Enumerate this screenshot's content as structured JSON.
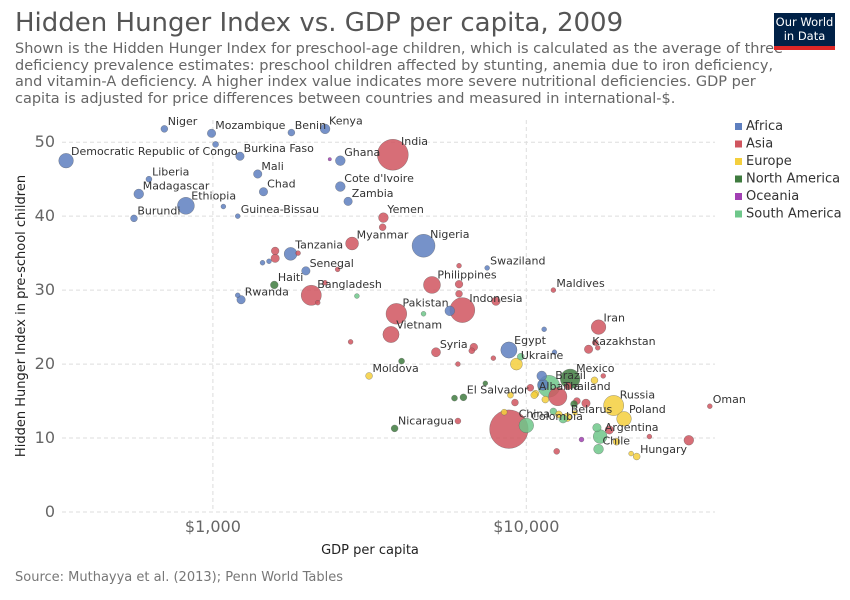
{
  "title": "Hidden Hunger Index vs. GDP per capita, 2009",
  "subtitle": "Shown is the Hidden Hunger Index for preschool-age children, which is calculated as the average of three deficiency prevalence estimates: preschool children affected by stunting, anemia due to iron deficiency, and vitamin-A deficiency. A higher index value indicates more severe nutritional deficiencies. GDP per capita is adjusted for price differences between countries and measured in international-$.",
  "logo": {
    "line1": "Our World",
    "line2": "in Data"
  },
  "source": "Source: Muthayya et al. (2013); Penn World Tables",
  "colors": {
    "Africa": "#5e7fbf",
    "Asia": "#d0555f",
    "Europe": "#f4cf3d",
    "North America": "#3f7b3f",
    "Oceania": "#a23fb4",
    "South America": "#6ec78a"
  },
  "chart_data": {
    "type": "scatter",
    "title": "Hidden Hunger Index vs. GDP per capita, 2009",
    "xlabel": "GDP per capita",
    "ylabel": "Hidden Hunger Index in pre-school children",
    "x_scale": "log",
    "xlim": [
      330,
      40000
    ],
    "ylim": [
      0,
      53
    ],
    "x_ticks": [
      {
        "value": 1000,
        "label": "$1,000"
      },
      {
        "value": 10000,
        "label": "$10,000"
      }
    ],
    "y_ticks": [
      0,
      10,
      20,
      30,
      40,
      50
    ],
    "grid": true,
    "legend_position": "top-right",
    "legend": [
      "Africa",
      "Asia",
      "Europe",
      "North America",
      "Oceania",
      "South America"
    ],
    "points": [
      {
        "label": "Niger",
        "x": 700,
        "y": 51.8,
        "region": "Africa",
        "size": 2
      },
      {
        "label": "Mozambique",
        "x": 990,
        "y": 51.2,
        "region": "Africa",
        "size": 3
      },
      {
        "label": "Benin",
        "x": 1780,
        "y": 51.3,
        "region": "Africa",
        "size": 2
      },
      {
        "label": "Kenya",
        "x": 2280,
        "y": 51.8,
        "region": "Africa",
        "size": 4
      },
      {
        "label": "India",
        "x": 3750,
        "y": 48.3,
        "region": "Asia",
        "size": 40
      },
      {
        "label": "Democratic Republic of Congo",
        "x": 340,
        "y": 47.5,
        "region": "Africa",
        "size": 9
      },
      {
        "label": "Burkina Faso",
        "x": 1220,
        "y": 48.1,
        "region": "Africa",
        "size": 3
      },
      {
        "label": "Ghana",
        "x": 2550,
        "y": 47.5,
        "region": "Africa",
        "size": 4
      },
      {
        "label": "Mali",
        "x": 1390,
        "y": 45.7,
        "region": "Africa",
        "size": 3
      },
      {
        "label": "Liberia",
        "x": 625,
        "y": 45.0,
        "region": "Africa",
        "size": 1.5
      },
      {
        "label": "Madagascar",
        "x": 580,
        "y": 43.0,
        "region": "Africa",
        "size": 4
      },
      {
        "label": "Chad",
        "x": 1450,
        "y": 43.3,
        "region": "Africa",
        "size": 3
      },
      {
        "label": "Cote d'Ivoire",
        "x": 2550,
        "y": 44.0,
        "region": "Africa",
        "size": 4
      },
      {
        "label": "Zambia",
        "x": 2700,
        "y": 42.0,
        "region": "Africa",
        "size": 3
      },
      {
        "label": "Ethiopia",
        "x": 820,
        "y": 41.4,
        "region": "Africa",
        "size": 12
      },
      {
        "label": "Burundi",
        "x": 560,
        "y": 39.7,
        "region": "Africa",
        "size": 2
      },
      {
        "label": "Guinea-Bissau",
        "x": 1200,
        "y": 40.0,
        "region": "Africa",
        "size": 1
      },
      {
        "label": "Yemen",
        "x": 3500,
        "y": 39.8,
        "region": "Asia",
        "size": 4
      },
      {
        "label": "Myanmar",
        "x": 2780,
        "y": 36.3,
        "region": "Asia",
        "size": 7
      },
      {
        "label": "Nigeria",
        "x": 4700,
        "y": 36.0,
        "region": "Africa",
        "size": 22
      },
      {
        "label": "Tanzania",
        "x": 1770,
        "y": 34.9,
        "region": "Africa",
        "size": 7
      },
      {
        "label": "Senegal",
        "x": 1980,
        "y": 32.6,
        "region": "Africa",
        "size": 3
      },
      {
        "label": "Swaziland",
        "x": 7500,
        "y": 33.0,
        "region": "Africa",
        "size": 1
      },
      {
        "label": "Haiti",
        "x": 1570,
        "y": 30.7,
        "region": "North America",
        "size": 2.5
      },
      {
        "label": "Philippines",
        "x": 5000,
        "y": 30.7,
        "region": "Asia",
        "size": 12
      },
      {
        "label": "Maldives",
        "x": 12200,
        "y": 30.0,
        "region": "Asia",
        "size": 1
      },
      {
        "label": "Rwanda",
        "x": 1230,
        "y": 28.7,
        "region": "Africa",
        "size": 3
      },
      {
        "label": "Bangladesh",
        "x": 2060,
        "y": 29.3,
        "region": "Asia",
        "size": 17
      },
      {
        "label": "Indonesia",
        "x": 6250,
        "y": 27.3,
        "region": "Asia",
        "size": 26
      },
      {
        "label": "Pakistan",
        "x": 3850,
        "y": 26.8,
        "region": "Asia",
        "size": 18
      },
      {
        "label": "Iran",
        "x": 17000,
        "y": 25.0,
        "region": "Asia",
        "size": 9
      },
      {
        "label": "Vietnam",
        "x": 3700,
        "y": 24.0,
        "region": "Asia",
        "size": 11
      },
      {
        "label": "Kazakhstan",
        "x": 15800,
        "y": 22.0,
        "region": "Asia",
        "size": 3
      },
      {
        "label": "Syria",
        "x": 5150,
        "y": 21.6,
        "region": "Asia",
        "size": 3.5
      },
      {
        "label": "Egypt",
        "x": 8800,
        "y": 21.9,
        "region": "Africa",
        "size": 11
      },
      {
        "label": "Ukraine",
        "x": 9300,
        "y": 20.0,
        "region": "Europe",
        "size": 6
      },
      {
        "label": "Moldova",
        "x": 3150,
        "y": 18.4,
        "region": "Europe",
        "size": 2
      },
      {
        "label": "Mexico",
        "x": 13800,
        "y": 18.0,
        "region": "North America",
        "size": 16
      },
      {
        "label": "Brazil",
        "x": 11800,
        "y": 17.0,
        "region": "South America",
        "size": 20
      },
      {
        "label": "Albania",
        "x": 10700,
        "y": 16.0,
        "region": "Europe",
        "size": 2
      },
      {
        "label": "Thailand",
        "x": 12600,
        "y": 15.6,
        "region": "Asia",
        "size": 14
      },
      {
        "label": "El Salvador",
        "x": 6300,
        "y": 15.5,
        "region": "North America",
        "size": 2
      },
      {
        "label": "Russia",
        "x": 19000,
        "y": 14.4,
        "region": "Europe",
        "size": 17
      },
      {
        "label": "China",
        "x": 8800,
        "y": 11.2,
        "region": "Asia",
        "size": 62
      },
      {
        "label": "Belarus",
        "x": 13500,
        "y": 12.8,
        "region": "Europe",
        "size": 3
      },
      {
        "label": "Poland",
        "x": 20500,
        "y": 12.6,
        "region": "Europe",
        "size": 9
      },
      {
        "label": "Colombia",
        "x": 10000,
        "y": 11.7,
        "region": "South America",
        "size": 9
      },
      {
        "label": "Oman",
        "x": 38500,
        "y": 14.3,
        "region": "Asia",
        "size": 1
      },
      {
        "label": "Nicaragua",
        "x": 3800,
        "y": 11.3,
        "region": "North America",
        "size": 2
      },
      {
        "label": "Argentina",
        "x": 17200,
        "y": 10.2,
        "region": "South America",
        "size": 8
      },
      {
        "label": "Chile",
        "x": 17000,
        "y": 8.5,
        "region": "South America",
        "size": 4
      },
      {
        "label": "Hungary",
        "x": 22500,
        "y": 7.5,
        "region": "Europe",
        "size": 2
      },
      {
        "label": "",
        "x": 33000,
        "y": 9.7,
        "region": "Asia",
        "size": 4
      },
      {
        "label": "",
        "x": 3480,
        "y": 38.5,
        "region": "Asia",
        "size": 2
      },
      {
        "label": "",
        "x": 1020,
        "y": 49.7,
        "region": "Africa",
        "size": 1.5
      },
      {
        "label": "",
        "x": 1080,
        "y": 41.3,
        "region": "Africa",
        "size": 1
      },
      {
        "label": "",
        "x": 2360,
        "y": 47.7,
        "region": "Oceania",
        "size": 0.5
      },
      {
        "label": "",
        "x": 1580,
        "y": 35.3,
        "region": "Asia",
        "size": 2.5
      },
      {
        "label": "",
        "x": 1580,
        "y": 34.3,
        "region": "Asia",
        "size": 3
      },
      {
        "label": "",
        "x": 1440,
        "y": 33.7,
        "region": "Africa",
        "size": 1
      },
      {
        "label": "",
        "x": 1510,
        "y": 33.9,
        "region": "Africa",
        "size": 1
      },
      {
        "label": "",
        "x": 2500,
        "y": 32.8,
        "region": "Asia",
        "size": 1
      },
      {
        "label": "",
        "x": 2280,
        "y": 31.0,
        "region": "Asia",
        "size": 1
      },
      {
        "label": "",
        "x": 1870,
        "y": 35.0,
        "region": "Asia",
        "size": 1
      },
      {
        "label": "",
        "x": 2160,
        "y": 28.3,
        "region": "Asia",
        "size": 1
      },
      {
        "label": "",
        "x": 1200,
        "y": 29.3,
        "region": "Africa",
        "size": 1
      },
      {
        "label": "",
        "x": 2880,
        "y": 29.2,
        "region": "South America",
        "size": 1
      },
      {
        "label": "",
        "x": 6100,
        "y": 30.8,
        "region": "Asia",
        "size": 2.5
      },
      {
        "label": "",
        "x": 6100,
        "y": 29.5,
        "region": "Asia",
        "size": 2
      },
      {
        "label": "",
        "x": 6100,
        "y": 33.3,
        "region": "Asia",
        "size": 1
      },
      {
        "label": "",
        "x": 8000,
        "y": 28.5,
        "region": "Asia",
        "size": 3
      },
      {
        "label": "",
        "x": 4700,
        "y": 26.8,
        "region": "South America",
        "size": 1
      },
      {
        "label": "",
        "x": 5700,
        "y": 27.2,
        "region": "Africa",
        "size": 4
      },
      {
        "label": "",
        "x": 2750,
        "y": 23.0,
        "region": "Asia",
        "size": 1
      },
      {
        "label": "",
        "x": 4000,
        "y": 20.4,
        "region": "North America",
        "size": 1.5
      },
      {
        "label": "",
        "x": 6800,
        "y": 22.3,
        "region": "Asia",
        "size": 2.5
      },
      {
        "label": "",
        "x": 6700,
        "y": 21.8,
        "region": "Asia",
        "size": 1.5
      },
      {
        "label": "",
        "x": 6050,
        "y": 20.0,
        "region": "Asia",
        "size": 1
      },
      {
        "label": "",
        "x": 7400,
        "y": 17.4,
        "region": "North America",
        "size": 1
      },
      {
        "label": "",
        "x": 7850,
        "y": 20.8,
        "region": "Asia",
        "size": 1
      },
      {
        "label": "",
        "x": 9600,
        "y": 21.0,
        "region": "South America",
        "size": 2
      },
      {
        "label": "",
        "x": 11400,
        "y": 24.7,
        "region": "Africa",
        "size": 1
      },
      {
        "label": "",
        "x": 12300,
        "y": 21.6,
        "region": "Africa",
        "size": 1
      },
      {
        "label": "",
        "x": 11200,
        "y": 18.4,
        "region": "Africa",
        "size": 4
      },
      {
        "label": "",
        "x": 11300,
        "y": 17.2,
        "region": "Africa",
        "size": 5
      },
      {
        "label": "",
        "x": 10300,
        "y": 16.8,
        "region": "Asia",
        "size": 2
      },
      {
        "label": "",
        "x": 13600,
        "y": 17.0,
        "region": "Asia",
        "size": 2
      },
      {
        "label": "",
        "x": 14500,
        "y": 15.0,
        "region": "Asia",
        "size": 2
      },
      {
        "label": "",
        "x": 14200,
        "y": 14.6,
        "region": "North America",
        "size": 2
      },
      {
        "label": "",
        "x": 15500,
        "y": 14.7,
        "region": "Asia",
        "size": 3
      },
      {
        "label": "",
        "x": 16500,
        "y": 17.8,
        "region": "Europe",
        "size": 2
      },
      {
        "label": "",
        "x": 17600,
        "y": 18.4,
        "region": "Asia",
        "size": 1
      },
      {
        "label": "",
        "x": 16900,
        "y": 22.2,
        "region": "Asia",
        "size": 1
      },
      {
        "label": "",
        "x": 16600,
        "y": 22.9,
        "region": "Asia",
        "size": 1.5
      },
      {
        "label": "",
        "x": 10600,
        "y": 15.8,
        "region": "Europe",
        "size": 2
      },
      {
        "label": "",
        "x": 11500,
        "y": 15.2,
        "region": "Europe",
        "size": 2
      },
      {
        "label": "",
        "x": 12200,
        "y": 13.6,
        "region": "South America",
        "size": 2
      },
      {
        "label": "",
        "x": 13100,
        "y": 12.6,
        "region": "South America",
        "size": 3
      },
      {
        "label": "",
        "x": 12700,
        "y": 13.2,
        "region": "Europe",
        "size": 2
      },
      {
        "label": "",
        "x": 14300,
        "y": 13.4,
        "region": "Europe",
        "size": 1
      },
      {
        "label": "",
        "x": 15000,
        "y": 9.8,
        "region": "Oceania",
        "size": 1
      },
      {
        "label": "",
        "x": 16800,
        "y": 11.4,
        "region": "South America",
        "size": 3
      },
      {
        "label": "",
        "x": 18400,
        "y": 11.1,
        "region": "Asia",
        "size": 3
      },
      {
        "label": "",
        "x": 19400,
        "y": 9.5,
        "region": "Europe",
        "size": 2
      },
      {
        "label": "",
        "x": 21600,
        "y": 7.9,
        "region": "Europe",
        "size": 1
      },
      {
        "label": "",
        "x": 24700,
        "y": 10.2,
        "region": "Asia",
        "size": 1
      },
      {
        "label": "",
        "x": 12500,
        "y": 8.2,
        "region": "Asia",
        "size": 1.5
      },
      {
        "label": "",
        "x": 8900,
        "y": 15.8,
        "region": "Europe",
        "size": 1.5
      },
      {
        "label": "",
        "x": 9200,
        "y": 14.8,
        "region": "Asia",
        "size": 2
      },
      {
        "label": "",
        "x": 6050,
        "y": 12.3,
        "region": "Asia",
        "size": 1.5
      },
      {
        "label": "",
        "x": 5900,
        "y": 15.4,
        "region": "North America",
        "size": 1.5
      },
      {
        "label": "",
        "x": 8500,
        "y": 13.5,
        "region": "Europe",
        "size": 1.5
      }
    ]
  }
}
